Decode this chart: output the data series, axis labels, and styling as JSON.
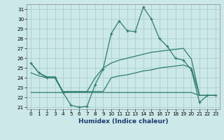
{
  "xlabel": "Humidex (Indice chaleur)",
  "x": [
    0,
    1,
    2,
    3,
    4,
    5,
    6,
    7,
    8,
    9,
    10,
    11,
    12,
    13,
    14,
    15,
    16,
    17,
    18,
    19,
    20,
    21,
    22,
    23
  ],
  "line_humidex": [
    25.5,
    24.5,
    24.0,
    24.0,
    22.5,
    21.2,
    21.0,
    21.1,
    23.3,
    24.9,
    28.5,
    29.8,
    28.8,
    28.7,
    31.2,
    30.0,
    28.0,
    27.2,
    26.0,
    25.8,
    24.8,
    21.5,
    22.2,
    22.2
  ],
  "line_upper": [
    25.5,
    24.5,
    24.1,
    24.1,
    22.6,
    22.6,
    22.6,
    22.6,
    24.0,
    25.0,
    25.5,
    25.8,
    26.0,
    26.2,
    26.4,
    26.6,
    26.7,
    26.8,
    26.9,
    27.0,
    25.9,
    22.2,
    22.2,
    22.2
  ],
  "line_mid": [
    24.5,
    24.2,
    24.0,
    24.0,
    22.5,
    22.6,
    22.6,
    22.6,
    22.6,
    22.6,
    24.0,
    24.2,
    24.3,
    24.5,
    24.7,
    24.8,
    25.0,
    25.1,
    25.2,
    25.3,
    25.0,
    22.2,
    22.2,
    22.2
  ],
  "line_lower": [
    22.5,
    22.5,
    22.5,
    22.5,
    22.5,
    22.5,
    22.5,
    22.5,
    22.5,
    22.5,
    22.5,
    22.5,
    22.5,
    22.5,
    22.5,
    22.5,
    22.5,
    22.5,
    22.5,
    22.5,
    22.5,
    22.2,
    22.2,
    22.2
  ],
  "line_color": "#2e7d6e",
  "bg_color": "#cce8e8",
  "grid_color": "#aacece",
  "ylim": [
    20.8,
    31.5
  ],
  "yticks": [
    21,
    22,
    23,
    24,
    25,
    26,
    27,
    28,
    29,
    30,
    31
  ],
  "xlim": [
    -0.5,
    23.5
  ]
}
